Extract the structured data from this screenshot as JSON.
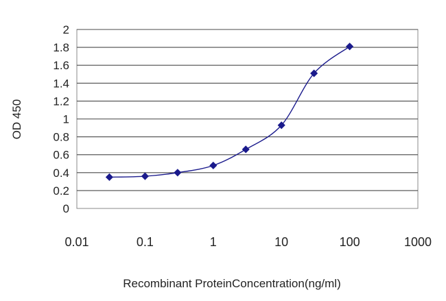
{
  "chart_data": {
    "type": "line",
    "title": "",
    "xlabel": "Recombinant ProteinConcentration(ng/ml)",
    "ylabel": "OD 450",
    "x_scale": "log",
    "xlim": [
      0.01,
      1000
    ],
    "ylim": [
      0,
      2
    ],
    "x_ticks": [
      "0.01",
      "0.1",
      "1",
      "10",
      "100",
      "1000"
    ],
    "y_ticks": [
      "0",
      "0.2",
      "0.4",
      "0.6",
      "0.8",
      "1",
      "1.2",
      "1.4",
      "1.6",
      "1.8",
      "2"
    ],
    "grid": "horizontal",
    "legend": "none",
    "series": [
      {
        "color": "#1a1a8c",
        "x": [
          0.03,
          0.1,
          0.3,
          1,
          3,
          10,
          30,
          100
        ],
        "y": [
          0.35,
          0.36,
          0.4,
          0.48,
          0.66,
          0.93,
          1.51,
          1.81
        ]
      }
    ]
  }
}
